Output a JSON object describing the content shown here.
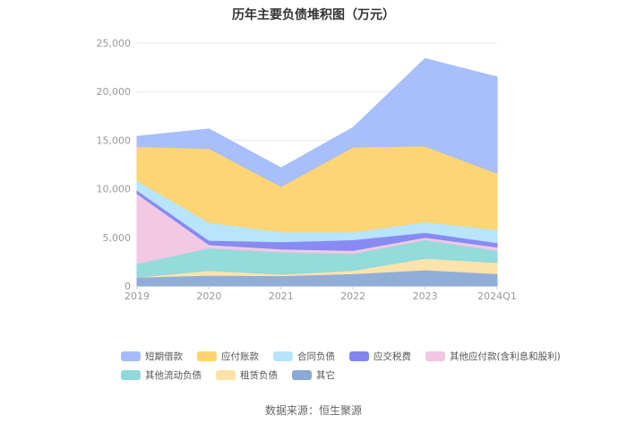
{
  "title": "历年主要负债堆积图（万元）",
  "source": "数据来源：恒生聚源",
  "chart_data": {
    "type": "area",
    "stacked": true,
    "x": [
      "2019",
      "2020",
      "2021",
      "2022",
      "2023",
      "2024Q1"
    ],
    "ylim": [
      0,
      25000
    ],
    "yticks": [
      "0",
      "5,000",
      "10,000",
      "15,000",
      "20,000",
      "25,000"
    ],
    "ytick_values": [
      0,
      5000,
      10000,
      15000,
      20000,
      25000
    ],
    "grid": true,
    "legend_position": "bottom",
    "series": [
      {
        "name": "其它",
        "color": "#8aaad6",
        "values": [
          900,
          1100,
          1050,
          1250,
          1650,
          1250
        ]
      },
      {
        "name": "租赁负债",
        "color": "#fce2a8",
        "values": [
          0,
          500,
          150,
          350,
          1200,
          1150
        ]
      },
      {
        "name": "其他流动负债",
        "color": "#8ed9d9",
        "values": [
          1400,
          2300,
          2300,
          1750,
          1900,
          1250
        ]
      },
      {
        "name": "其他应付款(含利息和股利)",
        "color": "#f0c6e2",
        "values": [
          7200,
          350,
          300,
          300,
          250,
          350
        ]
      },
      {
        "name": "应交税费",
        "color": "#8385f2",
        "values": [
          350,
          450,
          750,
          1100,
          500,
          450
        ]
      },
      {
        "name": "合同负债",
        "color": "#b5e4fc",
        "values": [
          1000,
          1850,
          1000,
          800,
          1100,
          1350
        ]
      },
      {
        "name": "应付账款",
        "color": "#fdd36d",
        "values": [
          3500,
          7600,
          4700,
          8750,
          7800,
          5800
        ]
      },
      {
        "name": "短期借款",
        "color": "#a4bcfb",
        "values": [
          1050,
          2000,
          1900,
          2000,
          9000,
          9900
        ]
      }
    ]
  },
  "legend": {
    "row1": [
      "短期借款",
      "应付账款",
      "合同负债",
      "应交税费",
      "其他应付款(含利息和股利)"
    ],
    "row2": [
      "其他流动负债",
      "租赁负债",
      "其它"
    ]
  }
}
